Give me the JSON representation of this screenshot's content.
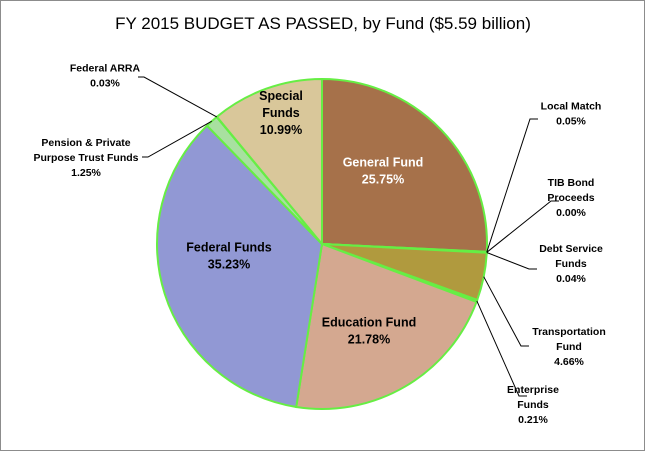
{
  "chart_data": {
    "type": "pie",
    "title": "FY 2015 BUDGET AS PASSED, by Fund ($5.59 billion)",
    "start_angle_deg": 0,
    "direction": "clockwise",
    "border_color": "#66ee44",
    "slices": [
      {
        "label": "General Fund",
        "value": 25.75,
        "label_text": "25.75%",
        "color": "#a6714a",
        "label_color": "#ffffff",
        "label_placement": "inside"
      },
      {
        "label": "Local Match",
        "value": 0.05,
        "label_text": "0.05%",
        "color": "#8b9b2e",
        "label_color": "#000000",
        "label_placement": "outside"
      },
      {
        "label": "TIB Bond Proceeds",
        "value": 0.0,
        "label_text": "0.00%",
        "color": "#8b9b2e",
        "label_color": "#000000",
        "label_placement": "outside"
      },
      {
        "label": "Debt Service Funds",
        "value": 0.04,
        "label_text": "0.04%",
        "color": "#8b9b2e",
        "label_color": "#000000",
        "label_placement": "outside"
      },
      {
        "label": "Transportation Fund",
        "value": 4.66,
        "label_text": "4.66%",
        "color": "#b09a3e",
        "label_color": "#000000",
        "label_placement": "outside"
      },
      {
        "label": "Enterprise Funds",
        "value": 0.21,
        "label_text": "0.21%",
        "color": "#7aa040",
        "label_color": "#000000",
        "label_placement": "outside"
      },
      {
        "label": "Education Fund",
        "value": 21.78,
        "label_text": "21.78%",
        "color": "#d4a890",
        "label_color": "#000000",
        "label_placement": "inside"
      },
      {
        "label": "Federal Funds",
        "value": 35.23,
        "label_text": "35.23%",
        "color": "#9198d4",
        "label_color": "#000000",
        "label_placement": "inside"
      },
      {
        "label": "Pension & Private Purpose Trust Funds",
        "value": 1.25,
        "label_text": "1.25%",
        "color": "#a8e0a0",
        "label_color": "#000000",
        "label_placement": "outside"
      },
      {
        "label": "Federal ARRA",
        "value": 0.03,
        "label_text": "0.03%",
        "color": "#c8e0b0",
        "label_color": "#000000",
        "label_placement": "outside"
      },
      {
        "label": "Special Funds",
        "value": 10.99,
        "label_text": "10.99%",
        "color": "#d9c79a",
        "label_color": "#000000",
        "label_placement": "inside"
      }
    ]
  }
}
